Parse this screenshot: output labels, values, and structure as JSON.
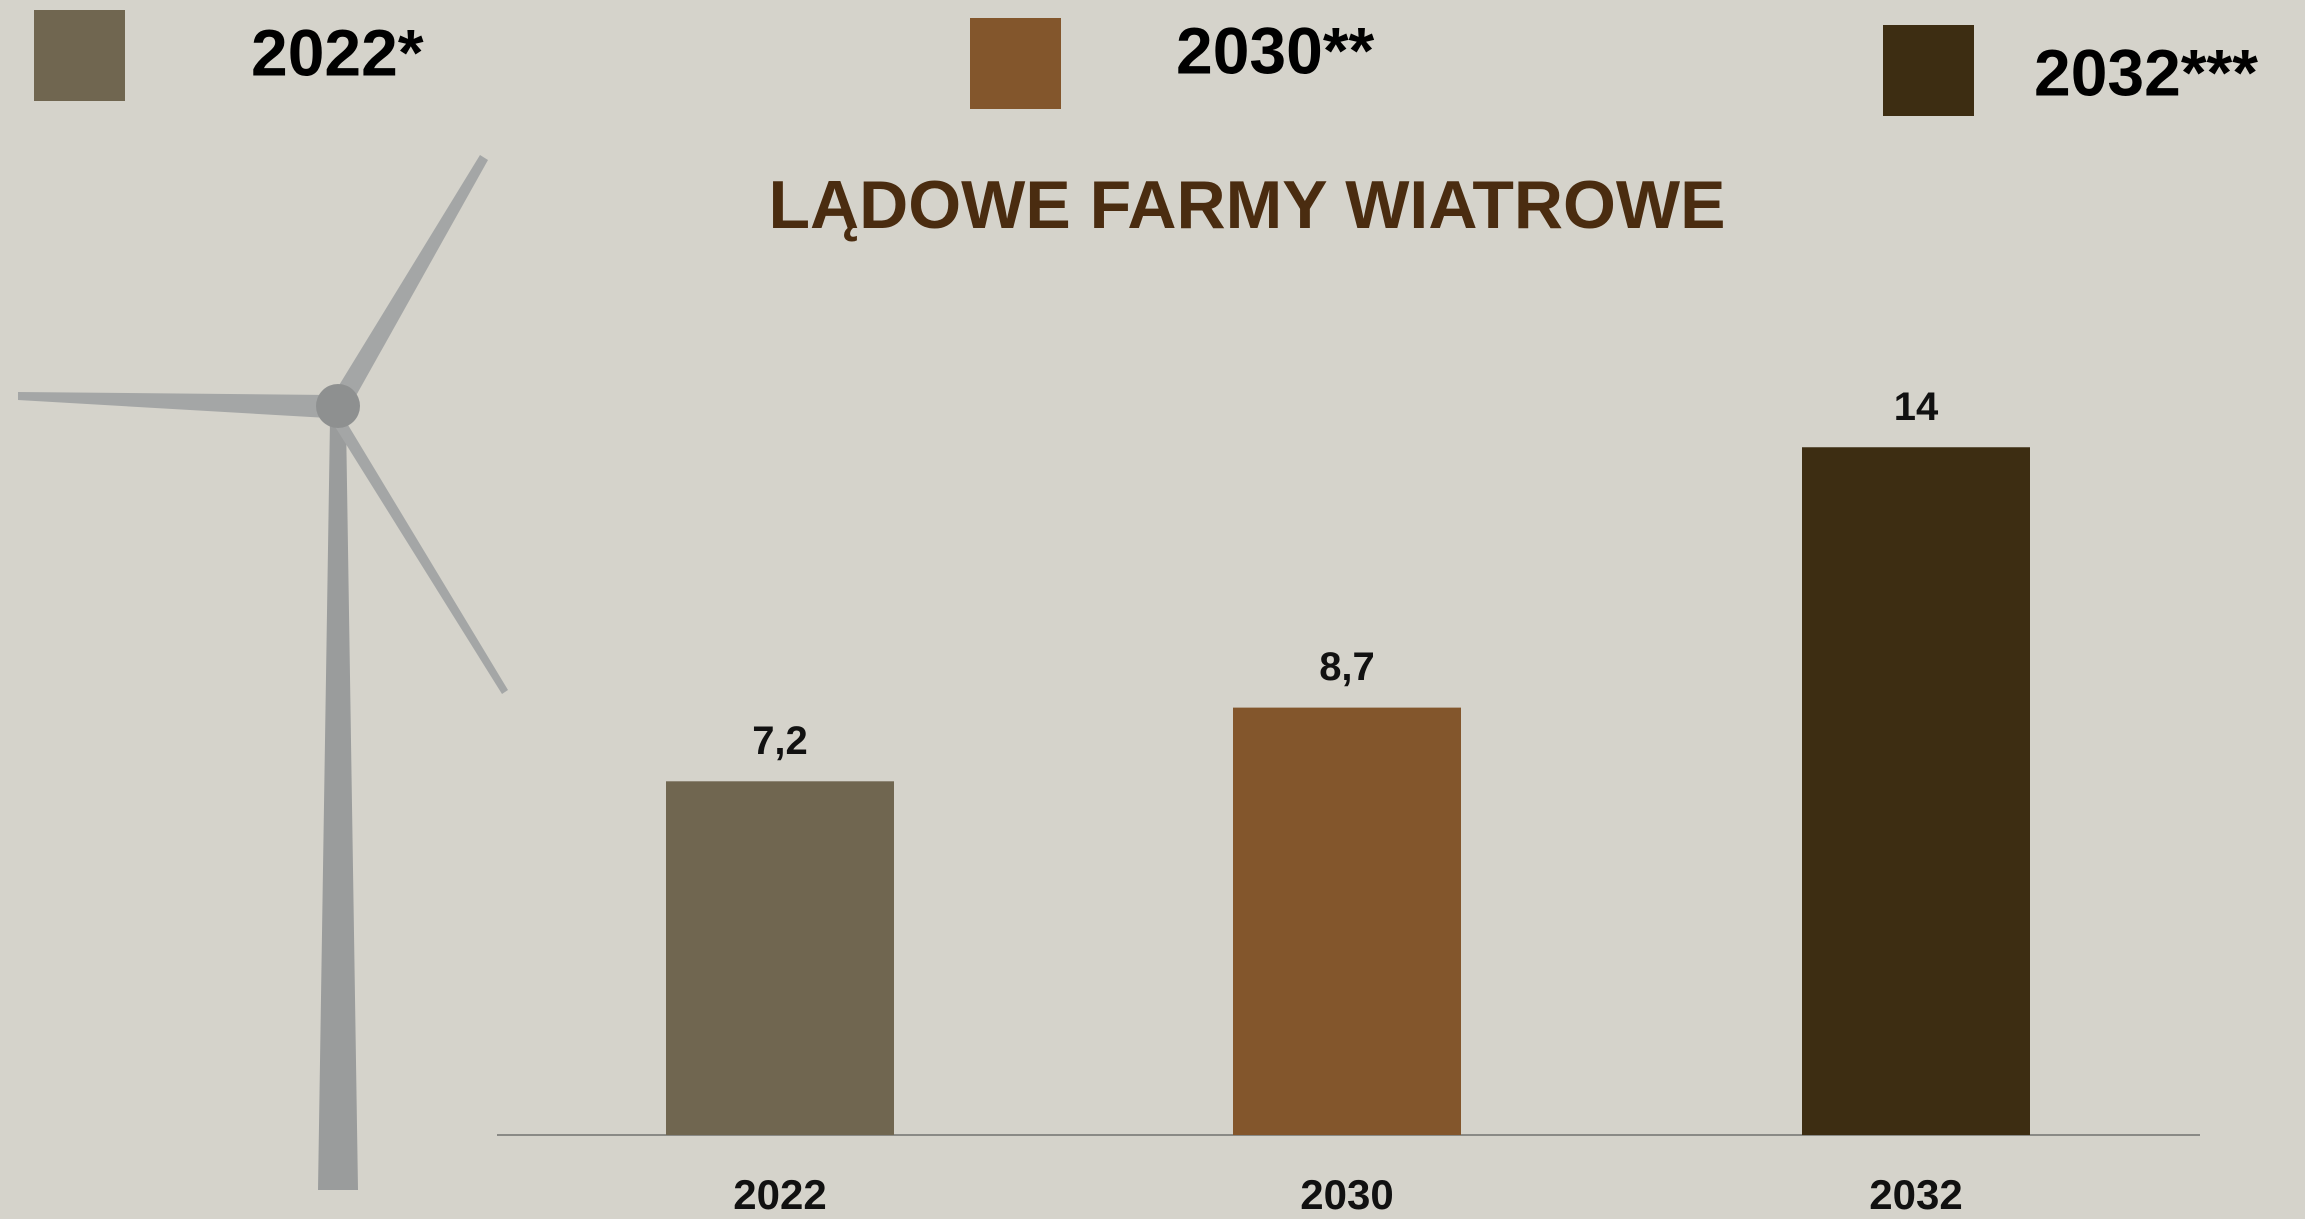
{
  "chart_data": {
    "type": "bar",
    "title": "LĄDOWE FARMY WIATROWE",
    "categories": [
      "2022",
      "2030",
      "2032"
    ],
    "values": [
      7.2,
      8.7,
      14
    ],
    "value_labels": [
      "7,2",
      "8,7",
      "14"
    ],
    "colors": [
      "#706650",
      "#83562c",
      "#3d2d12"
    ],
    "legend": [
      "2022*",
      "2030**",
      "2032***"
    ],
    "ylim": [
      0,
      16
    ]
  }
}
